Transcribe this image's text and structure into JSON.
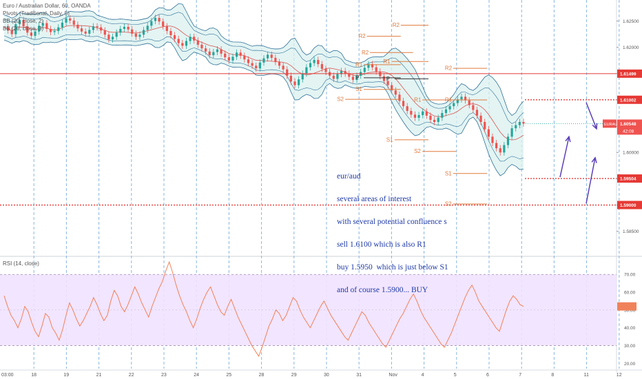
{
  "indicators": {
    "title": "Euro / Australian Dollar, 60, OANDA",
    "pivots": "Pivots (Traditional, Daily, 5)",
    "bb1": "BB (20, close, 2)",
    "bb2": "BB (20, close, 3)",
    "rsi": "RSI (14, close)"
  },
  "annotation": {
    "lines": [
      "eur/aud",
      "several areas of interest",
      "with several potential confluence s",
      "sell 1.6100 which is also R1",
      "buy 1.5950  which is just below S1",
      "and of course 1.5900... BUY"
    ]
  },
  "colors": {
    "up": "#26a69a",
    "down": "#ef5350",
    "band": "#2e6f96",
    "band_fill": "#d9f0ef",
    "pivot": "#e07a3c",
    "hline": "#e53935",
    "arrow": "#5b3fb8",
    "rsi_line": "#f0825a",
    "rsi_fill": "#f1e2ff",
    "vline": "#6aa3d8",
    "price_tag": "#ef5350"
  },
  "chart_data": [
    {
      "type": "candlestick",
      "symbol": "EURAUD",
      "ylim": [
        1.5805,
        1.629
      ],
      "y_ticks": [
        1.625,
        1.62,
        1.615,
        1.61,
        1.605,
        1.6,
        1.595,
        1.59,
        1.585
      ],
      "price_labels": [
        {
          "text": "1.61499",
          "value": 1.61499,
          "style": "line"
        },
        {
          "text": "1.61002",
          "value": 1.61002,
          "style": "dotted"
        },
        {
          "text": "1.59504",
          "value": 1.59504,
          "style": "dotted"
        },
        {
          "text": "1.59000",
          "value": 1.59,
          "style": "dotted"
        }
      ],
      "last_price": {
        "symbol": "EURAUD",
        "value": "1.60548",
        "countdown": "42:08"
      },
      "x_ticks": [
        "03:00",
        "18",
        "19",
        "21",
        "22",
        "23",
        "24",
        "25",
        "28",
        "29",
        "30",
        "31",
        "Nov",
        "4",
        "5",
        "6",
        "7",
        "8",
        "11",
        "12",
        "13"
      ],
      "pivot_levels": [
        {
          "label": "R2",
          "value": 1.619,
          "from": 0.6,
          "to": 0.67
        },
        {
          "label": "R2",
          "value": 1.6242,
          "from": 0.65,
          "to": 0.695
        },
        {
          "label": "R2",
          "value": 1.6221,
          "from": 0.595,
          "to": 0.65
        },
        {
          "label": "R1",
          "value": 1.6167,
          "from": 0.59,
          "to": 0.65
        },
        {
          "label": "R1",
          "value": 1.6173,
          "from": 0.635,
          "to": 0.695
        },
        {
          "label": "R1",
          "value": 1.61,
          "from": 0.685,
          "to": 0.738
        },
        {
          "label": "R1",
          "value": 1.61,
          "from": 0.735,
          "to": 0.79
        },
        {
          "label": "R2",
          "value": 1.616,
          "from": 0.735,
          "to": 0.79
        },
        {
          "label": "P",
          "value": 1.6142,
          "from": 0.59,
          "to": 0.65
        },
        {
          "label": "P",
          "value": 1.614,
          "from": 0.64,
          "to": 0.695
        },
        {
          "label": "S1",
          "value": 1.612,
          "from": 0.59,
          "to": 0.65
        },
        {
          "label": "S2",
          "value": 1.6101,
          "from": 0.56,
          "to": 0.65
        },
        {
          "label": "S1",
          "value": 1.6024,
          "from": 0.64,
          "to": 0.695
        },
        {
          "label": "S2",
          "value": 1.6002,
          "from": 0.685,
          "to": 0.74
        },
        {
          "label": "S1",
          "value": 1.596,
          "from": 0.735,
          "to": 0.79
        },
        {
          "label": "S2",
          "value": 1.5902,
          "from": 0.735,
          "to": 0.79
        }
      ],
      "series": [
        {
          "name": "EURAUD",
          "points": [
            1.6238,
            1.6232,
            1.6225,
            1.6244,
            1.6252,
            1.624,
            1.6228,
            1.6222,
            1.623,
            1.6241,
            1.6246,
            1.6235,
            1.6229,
            1.6231,
            1.6238,
            1.6247,
            1.6255,
            1.6251,
            1.6243,
            1.6236,
            1.623,
            1.6226,
            1.6233,
            1.624,
            1.6238,
            1.6232,
            1.6224,
            1.6215,
            1.622,
            1.6228,
            1.6235,
            1.6239,
            1.6234,
            1.6226,
            1.622,
            1.6224,
            1.6233,
            1.6241,
            1.625,
            1.6256,
            1.6249,
            1.624,
            1.6231,
            1.6223,
            1.6216,
            1.6208,
            1.6203,
            1.6212,
            1.622,
            1.6213,
            1.6205,
            1.6198,
            1.6192,
            1.6185,
            1.6191,
            1.6196,
            1.6188,
            1.6181,
            1.6175,
            1.6182,
            1.619,
            1.6184,
            1.6177,
            1.617,
            1.6165,
            1.616,
            1.6171,
            1.6179,
            1.6186,
            1.618,
            1.6172,
            1.6165,
            1.6158,
            1.6146,
            1.6135,
            1.6128,
            1.6139,
            1.615,
            1.6162,
            1.617,
            1.6176,
            1.6168,
            1.6159,
            1.6153,
            1.6146,
            1.614,
            1.6149,
            1.6155,
            1.615,
            1.6144,
            1.6138,
            1.6146,
            1.6153,
            1.6161,
            1.6168,
            1.6162,
            1.6154,
            1.6145,
            1.6136,
            1.6128,
            1.6118,
            1.611,
            1.6098,
            1.6088,
            1.6079,
            1.6072,
            1.6066,
            1.6071,
            1.6078,
            1.607,
            1.6062,
            1.6058,
            1.6066,
            1.6075,
            1.6082,
            1.6088,
            1.6094,
            1.6101,
            1.6106,
            1.6099,
            1.609,
            1.6081,
            1.607,
            1.6058,
            1.6044,
            1.603,
            1.6018,
            1.6008,
            1.6,
            1.6014,
            1.603,
            1.6046,
            1.6052,
            1.6058,
            1.6055
          ]
        }
      ]
    },
    {
      "type": "line",
      "name": "RSI (14, close)",
      "ylim": [
        17,
        79
      ],
      "y_ticks": [
        70,
        60,
        50,
        40,
        30,
        20
      ],
      "band": [
        30,
        70
      ],
      "series": [
        {
          "name": "RSI",
          "values": [
            58,
            52,
            47,
            44,
            40,
            45,
            52,
            49,
            43,
            38,
            35,
            41,
            48,
            46,
            40,
            37,
            33,
            39,
            47,
            54,
            50,
            45,
            41,
            44,
            48,
            52,
            57,
            53,
            48,
            44,
            47,
            55,
            61,
            58,
            52,
            49,
            53,
            58,
            63,
            59,
            54,
            50,
            46,
            52,
            57,
            62,
            66,
            72,
            77,
            71,
            64,
            58,
            53,
            49,
            44,
            40,
            45,
            51,
            56,
            60,
            63,
            58,
            53,
            49,
            47,
            52,
            56,
            51,
            46,
            42,
            38,
            34,
            30,
            27,
            24,
            29,
            35,
            41,
            45,
            50,
            48,
            44,
            47,
            52,
            57,
            55,
            50,
            46,
            43,
            40,
            44,
            48,
            52,
            55,
            51,
            47,
            44,
            41,
            38,
            35,
            33,
            37,
            41,
            45,
            49,
            47,
            43,
            40,
            37,
            34,
            31,
            29,
            33,
            37,
            41,
            45,
            48,
            52,
            56,
            59,
            55,
            50,
            46,
            43,
            40,
            37,
            34,
            31,
            29,
            33,
            37,
            42,
            47,
            52,
            57,
            61,
            64,
            60,
            55,
            52,
            49,
            46,
            43,
            40,
            38,
            44,
            50,
            55,
            58,
            56,
            53,
            52
          ]
        }
      ]
    }
  ]
}
